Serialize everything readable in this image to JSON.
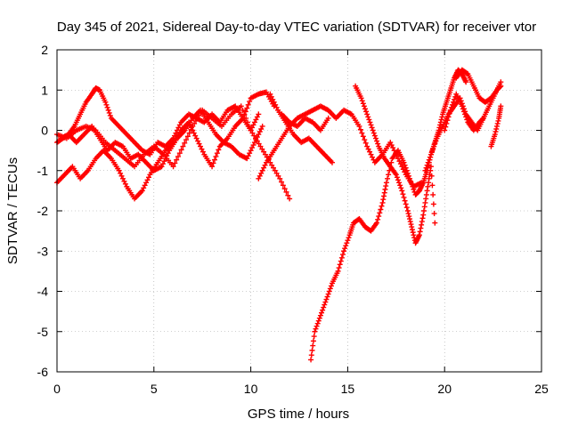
{
  "chart_data": {
    "type": "scatter",
    "title": "Day 345 of 2021, Sidereal Day-to-day VTEC variation (SDTVAR) for receiver vtor",
    "xlabel": "GPS time / hours",
    "ylabel": "SDTVAR / TECUs",
    "xlim": [
      0,
      25
    ],
    "ylim": [
      -6,
      2
    ],
    "xticks": [
      "0",
      "5",
      "10",
      "15",
      "20",
      "25"
    ],
    "yticks": [
      "-6",
      "-5",
      "-4",
      "-3",
      "-2",
      "-1",
      "0",
      "1",
      "2"
    ],
    "grid": true,
    "marker": "plus",
    "color": "#ff0000",
    "series": [
      {
        "x": [
          0.0,
          0.3,
          0.6,
          0.9,
          1.2,
          1.5,
          1.8,
          2.0,
          2.2,
          2.5,
          2.8,
          3.2,
          3.6,
          4.0,
          4.4,
          4.8,
          5.2,
          5.6,
          6.0,
          6.4,
          6.8,
          7.2,
          7.6,
          8.0,
          8.4,
          8.8,
          9.2,
          9.6,
          10.0,
          10.4,
          10.8,
          11.2
        ],
        "y": [
          -0.3,
          -0.2,
          -0.1,
          0.1,
          0.4,
          0.7,
          0.9,
          1.05,
          1.0,
          0.7,
          0.3,
          0.1,
          -0.1,
          -0.3,
          -0.5,
          -0.6,
          -0.3,
          -0.4,
          -0.2,
          0.2,
          0.4,
          0.3,
          0.2,
          0.4,
          0.2,
          0.5,
          0.6,
          0.3,
          0.8,
          0.9,
          0.95,
          0.6
        ]
      },
      {
        "x": [
          0.0,
          0.4,
          0.8,
          1.2,
          1.6,
          2.0,
          2.4,
          2.8,
          3.2,
          3.6,
          4.0,
          4.4,
          4.8,
          5.2,
          5.6,
          6.0,
          6.4,
          6.8,
          7.2,
          7.6,
          8.0,
          8.4,
          8.8,
          9.2,
          9.6,
          10.0,
          10.4
        ],
        "y": [
          -1.3,
          -1.1,
          -0.9,
          -1.2,
          -1.0,
          -0.7,
          -0.5,
          -0.7,
          -1.0,
          -1.4,
          -1.7,
          -1.5,
          -1.1,
          -0.8,
          -0.5,
          -0.3,
          0.0,
          0.2,
          -0.2,
          -0.6,
          -0.9,
          -0.4,
          -0.2,
          0.1,
          0.3,
          0.0,
          0.4
        ]
      },
      {
        "x": [
          0.0,
          0.5,
          1.0,
          1.5,
          2.0,
          2.5,
          3.0,
          3.5,
          4.0,
          4.5,
          5.0,
          5.5,
          6.0,
          6.5,
          7.0,
          7.5,
          8.0,
          8.5,
          9.0,
          9.5,
          10.0,
          10.5,
          11.0,
          11.5,
          12.0
        ],
        "y": [
          -0.1,
          -0.2,
          0.0,
          0.1,
          0.0,
          -0.3,
          -0.5,
          -0.7,
          -0.9,
          -0.6,
          -0.4,
          -0.6,
          -0.9,
          -0.4,
          0.1,
          0.5,
          0.3,
          0.1,
          0.4,
          0.6,
          0.0,
          -0.4,
          -0.8,
          -1.2,
          -1.7
        ]
      },
      {
        "x": [
          0.2,
          0.6,
          1.0,
          1.4,
          1.8,
          2.2,
          2.6,
          3.0,
          3.4,
          3.8,
          4.2,
          4.6,
          5.0,
          5.4,
          5.8,
          6.2,
          6.6,
          7.0,
          7.4,
          7.8,
          8.2,
          8.6,
          9.0,
          9.4,
          9.8,
          10.2,
          10.6
        ],
        "y": [
          -0.2,
          -0.1,
          -0.3,
          -0.1,
          0.1,
          -0.2,
          -0.5,
          -0.3,
          -0.4,
          -0.7,
          -0.6,
          -0.8,
          -1.0,
          -0.9,
          -0.5,
          -0.2,
          0.0,
          0.3,
          0.5,
          0.2,
          -0.1,
          -0.3,
          -0.4,
          -0.6,
          -0.7,
          -0.3,
          0.1
        ]
      },
      {
        "x": [
          10.4,
          10.8,
          11.2,
          11.6,
          12.0,
          12.4,
          12.8,
          13.2,
          13.6,
          14.0,
          14.4,
          14.8,
          15.2,
          15.6,
          16.0,
          16.4,
          16.8,
          17.2,
          17.6,
          18.0,
          18.4,
          18.8
        ],
        "y": [
          -1.2,
          -0.8,
          -0.5,
          -0.2,
          0.1,
          0.3,
          0.4,
          0.5,
          0.6,
          0.5,
          0.3,
          0.5,
          0.4,
          0.1,
          -0.4,
          -0.8,
          -0.6,
          -0.3,
          -0.7,
          -1.1,
          -1.4,
          -1.3
        ]
      },
      {
        "x": [
          11.0,
          11.4,
          11.8,
          12.2,
          12.6,
          13.0,
          13.4,
          13.8,
          14.2
        ],
        "y": [
          0.9,
          0.5,
          0.2,
          -0.1,
          -0.3,
          -0.2,
          -0.4,
          -0.6,
          -0.8
        ]
      },
      {
        "x": [
          11.6,
          12.0,
          12.4,
          12.8,
          13.2,
          13.6,
          14.0
        ],
        "y": [
          0.4,
          0.2,
          0.1,
          0.3,
          0.2,
          0.0,
          0.3
        ]
      },
      {
        "x": [
          13.1,
          13.3,
          13.6,
          13.9,
          14.2,
          14.5,
          14.8,
          15.1,
          15.3,
          15.6,
          15.9,
          16.2,
          16.5,
          16.8,
          17.0,
          17.3,
          17.6,
          17.9,
          18.2,
          18.5,
          18.7,
          18.9,
          19.1,
          19.3,
          19.5,
          19.7,
          19.9,
          20.1,
          20.3,
          20.5,
          20.7,
          20.9,
          21.1
        ],
        "y": [
          -5.7,
          -5.0,
          -4.6,
          -4.2,
          -3.8,
          -3.5,
          -3.0,
          -2.6,
          -2.3,
          -2.2,
          -2.4,
          -2.5,
          -2.3,
          -1.8,
          -1.3,
          -0.7,
          -0.5,
          -0.8,
          -1.2,
          -1.6,
          -1.5,
          -1.3,
          -1.0,
          -0.6,
          -0.3,
          0.0,
          0.4,
          0.7,
          1.0,
          1.3,
          1.5,
          1.4,
          1.2
        ]
      },
      {
        "x": [
          15.4,
          15.7,
          16.0,
          16.3,
          16.6,
          16.9,
          17.2,
          17.5,
          17.8,
          18.1,
          18.3,
          18.5,
          18.7,
          18.9,
          19.1,
          19.3,
          19.5
        ],
        "y": [
          1.1,
          0.8,
          0.4,
          0.0,
          -0.4,
          -0.7,
          -0.9,
          -1.1,
          -1.5,
          -2.0,
          -2.4,
          -2.8,
          -2.6,
          -2.1,
          -1.5,
          -0.9,
          -2.3
        ]
      },
      {
        "x": [
          19.0,
          19.3,
          19.6,
          19.9,
          20.2,
          20.5,
          20.8,
          21.1,
          21.4,
          21.7,
          22.0,
          22.3,
          22.6,
          22.9
        ],
        "y": [
          -1.0,
          -0.6,
          -0.2,
          0.1,
          0.4,
          0.6,
          0.8,
          0.4,
          0.2,
          0.0,
          0.3,
          0.6,
          0.9,
          1.2
        ]
      },
      {
        "x": [
          20.6,
          20.9,
          21.2,
          21.5,
          21.8,
          22.1,
          22.4,
          22.7,
          22.9
        ],
        "y": [
          1.3,
          1.5,
          1.4,
          1.1,
          0.8,
          0.7,
          0.8,
          1.0,
          1.1
        ]
      },
      {
        "x": [
          22.4,
          22.6,
          22.8,
          22.9
        ],
        "y": [
          -0.4,
          -0.1,
          0.3,
          0.6
        ]
      },
      {
        "x": [
          20.0,
          20.3,
          20.6,
          20.9,
          21.2,
          21.5,
          21.8,
          22.0
        ],
        "y": [
          0.0,
          0.5,
          0.9,
          0.6,
          0.2,
          0.0,
          0.2,
          0.3
        ]
      }
    ]
  }
}
